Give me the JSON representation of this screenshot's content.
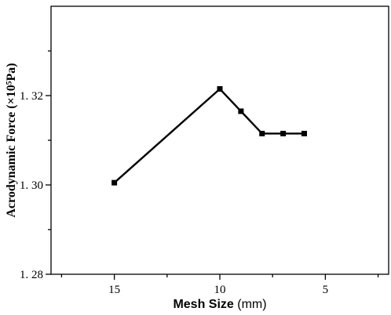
{
  "chart_data": {
    "type": "line",
    "xlabel": "Mesh Size",
    "xlabel_unit": "(mm)",
    "ylabel": "Acrodynamic Force (×10⁵Pa)",
    "xlim": [
      18,
      2
    ],
    "ylim": [
      1.28,
      1.34
    ],
    "x_reversed": true,
    "x_ticks": [
      15,
      10,
      5
    ],
    "x_tick_labels": [
      "15",
      "10",
      "5"
    ],
    "x_minor_ticks": [
      17.5,
      12.5,
      7.5,
      2.5
    ],
    "y_ticks": [
      1.28,
      1.3,
      1.32
    ],
    "y_tick_labels": [
      "1. 28",
      "1. 30",
      "1. 32"
    ],
    "y_minor_ticks": [
      1.29,
      1.31,
      1.33
    ],
    "grid": false,
    "legend": "none",
    "series": [
      {
        "color": "#000000",
        "marker": "square",
        "x": [
          15,
          10,
          9,
          8,
          7,
          6
        ],
        "y": [
          1.3005,
          1.3215,
          1.3165,
          1.3115,
          1.3115,
          1.3115
        ]
      }
    ]
  }
}
